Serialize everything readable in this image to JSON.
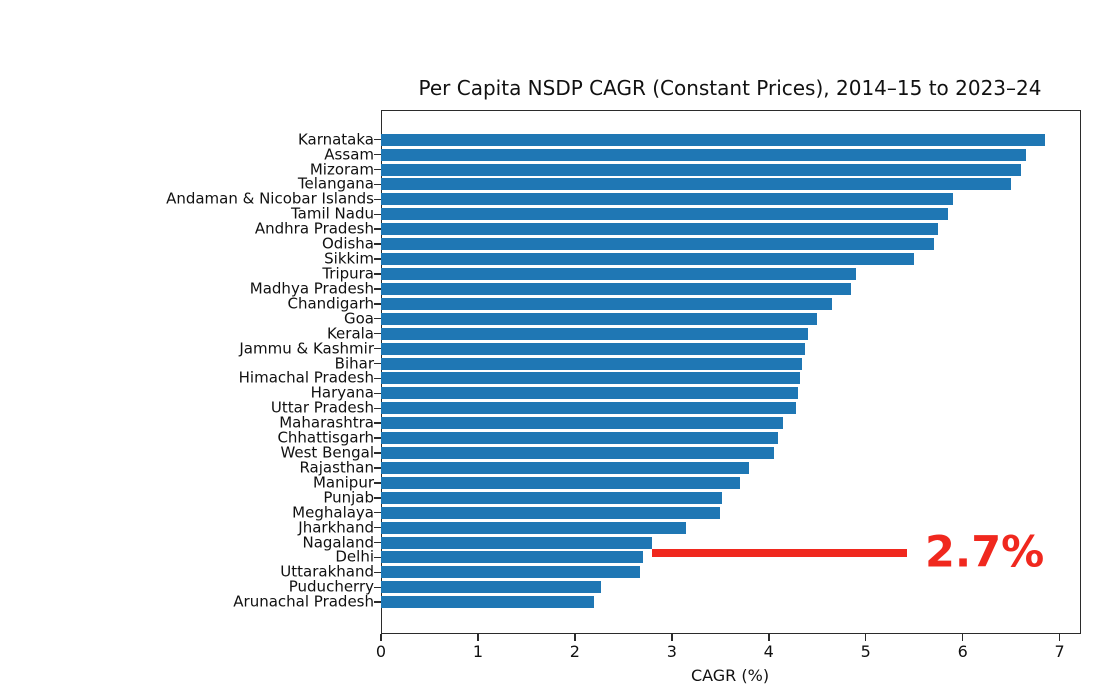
{
  "figure": {
    "background": "#ffffff"
  },
  "chart_data": {
    "type": "bar",
    "orientation": "horizontal",
    "title": "Per Capita NSDP CAGR (Constant Prices), 2014–15 to 2023–24",
    "xlabel": "CAGR (%)",
    "ylabel": "",
    "xlim": [
      0,
      7.2
    ],
    "xticks": [
      0,
      1,
      2,
      3,
      4,
      5,
      6,
      7
    ],
    "grid": false,
    "legend": false,
    "bar_color": "#1f77b4",
    "categories": [
      "Karnataka",
      "Assam",
      "Mizoram",
      "Telangana",
      "Andaman & Nicobar Islands",
      "Tamil Nadu",
      "Andhra Pradesh",
      "Odisha",
      "Sikkim",
      "Tripura",
      "Madhya Pradesh",
      "Chandigarh",
      "Goa",
      "Kerala",
      "Jammu & Kashmir",
      "Bihar",
      "Himachal Pradesh",
      "Haryana",
      "Uttar Pradesh",
      "Maharashtra",
      "Chhattisgarh",
      "West Bengal",
      "Rajasthan",
      "Manipur",
      "Punjab",
      "Meghalaya",
      "Jharkhand",
      "Nagaland",
      "Delhi",
      "Uttarakhand",
      "Puducherry",
      "Arunachal Pradesh"
    ],
    "values": [
      6.85,
      6.65,
      6.6,
      6.5,
      5.9,
      5.85,
      5.75,
      5.7,
      5.5,
      4.9,
      4.85,
      4.65,
      4.5,
      4.4,
      4.37,
      4.34,
      4.32,
      4.3,
      4.28,
      4.15,
      4.1,
      4.05,
      3.8,
      3.7,
      3.52,
      3.5,
      3.15,
      2.8,
      2.7,
      2.67,
      2.27,
      2.2
    ],
    "annotation": {
      "text": "2.7%",
      "target_category": "Delhi",
      "color": "#f0281e"
    }
  }
}
